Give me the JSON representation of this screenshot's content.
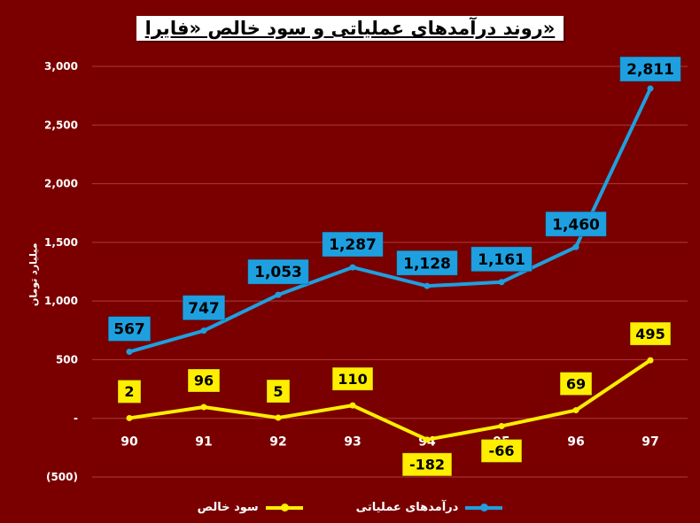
{
  "title": "روند درآمدهای عملیاتی و سود خالص «فایرا»",
  "colors": {
    "background": "#7a0000",
    "revenue": "#1ea0e0",
    "profit": "#ffee00",
    "grid": "#b23a3a"
  },
  "chart_data": {
    "type": "line",
    "title": "روند درآمدهای عملیاتی و سود خالص «فایرا»",
    "xlabel": "",
    "ylabel": "میلیارد تومان",
    "categories": [
      "90",
      "91",
      "92",
      "93",
      "94",
      "95",
      "96",
      "97"
    ],
    "ylim": [
      -500,
      3000
    ],
    "yticks": [
      -500,
      0,
      500,
      1000,
      1500,
      2000,
      2500,
      3000
    ],
    "ytick_labels": [
      "(500)",
      "-",
      "500",
      "1,000",
      "1,500",
      "2,000",
      "2,500",
      "3,000"
    ],
    "grid": true,
    "legend_position": "bottom",
    "series": [
      {
        "name": "درآمدهای عملیاتی",
        "values": [
          567,
          747,
          1053,
          1287,
          1128,
          1161,
          1460,
          2811
        ],
        "labels": [
          "567",
          "747",
          "1,053",
          "1,287",
          "1,128",
          "1,161",
          "1,460",
          "2,811"
        ]
      },
      {
        "name": "سود خالص",
        "values": [
          2,
          96,
          5,
          110,
          -182,
          -66,
          69,
          495
        ],
        "labels": [
          "2",
          "96",
          "5",
          "110",
          "-182",
          "-66",
          "69",
          "495"
        ]
      }
    ]
  }
}
